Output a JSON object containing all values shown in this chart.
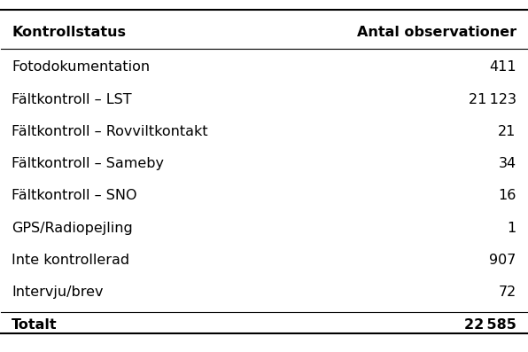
{
  "col1_header": "Kontrollstatus",
  "col2_header": "Antal observationer",
  "rows": [
    [
      "Fotodokumentation",
      "411"
    ],
    [
      "Fältkontroll – LST",
      "21 123"
    ],
    [
      "Fältkontroll – Rovviltkontakt",
      "21"
    ],
    [
      "Fältkontroll – Sameby",
      "34"
    ],
    [
      "Fältkontroll – SNO",
      "16"
    ],
    [
      "GPS/Radiopejling",
      "1"
    ],
    [
      "Inte kontrollerad",
      "907"
    ],
    [
      "Intervju/brev",
      "72"
    ],
    [
      "Totalt",
      "22 585"
    ]
  ],
  "background_color": "#ffffff",
  "text_color": "#000000",
  "header_fontsize": 11.5,
  "row_fontsize": 11.5,
  "figsize": [
    5.96,
    3.97
  ],
  "dpi": 100
}
